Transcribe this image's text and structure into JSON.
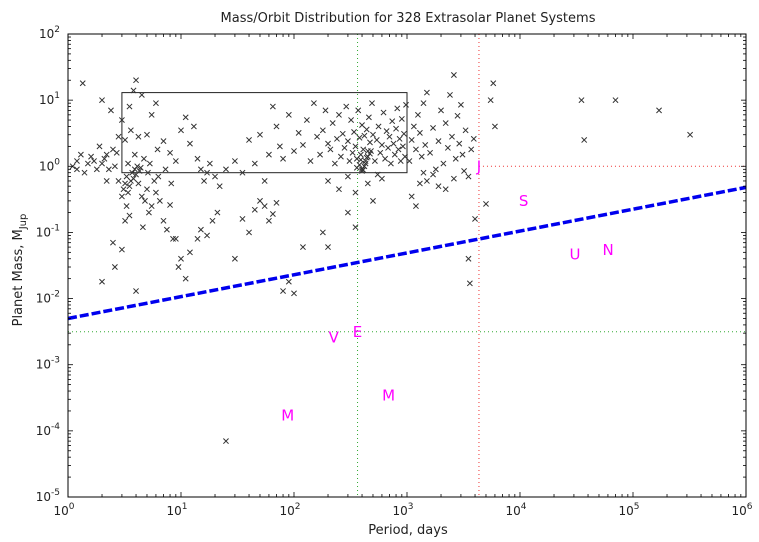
{
  "chart_data": {
    "type": "scatter",
    "title": "Mass/Orbit Distribution for 328 Extrasolar Planet Systems",
    "xlabel": "Period, days",
    "ylabel_main": "Planet Mass, M",
    "ylabel_sub": "Jup",
    "xscale": "log",
    "yscale": "log",
    "xlim": [
      1,
      1000000
    ],
    "ylim": [
      1e-05,
      100
    ],
    "x_ticks": [
      {
        "base": "10",
        "exp": "0",
        "value": 1
      },
      {
        "base": "10",
        "exp": "1",
        "value": 10
      },
      {
        "base": "10",
        "exp": "2",
        "value": 100
      },
      {
        "base": "10",
        "exp": "3",
        "value": 1000
      },
      {
        "base": "10",
        "exp": "4",
        "value": 10000
      },
      {
        "base": "10",
        "exp": "5",
        "value": 100000
      },
      {
        "base": "10",
        "exp": "6",
        "value": 1000000
      }
    ],
    "y_ticks": [
      {
        "base": "10",
        "exp": "-5",
        "value": 1e-05
      },
      {
        "base": "10",
        "exp": "-4",
        "value": 0.0001
      },
      {
        "base": "10",
        "exp": "-3",
        "value": 0.001
      },
      {
        "base": "10",
        "exp": "-2",
        "value": 0.01
      },
      {
        "base": "10",
        "exp": "-1",
        "value": 0.1
      },
      {
        "base": "10",
        "exp": "0",
        "value": 1
      },
      {
        "base": "10",
        "exp": "1",
        "value": 10
      },
      {
        "base": "10",
        "exp": "2",
        "value": 100
      }
    ],
    "colors": {
      "points": "#333333",
      "planets": "#ff00ff",
      "trend": "#0000ee",
      "earth_ref": "#33aa33",
      "jupiter_ref": "#ee3333",
      "box": "#222222"
    },
    "box": {
      "x0": 3,
      "x1": 1000,
      "y0": 0.8,
      "y1": 13
    },
    "reference_lines": {
      "earth_period": 365,
      "earth_mass": 0.00315,
      "jupiter_period": 4333,
      "jupiter_mass": 1.0
    },
    "trend_line": {
      "points": [
        [
          1,
          0.005
        ],
        [
          1000000,
          0.48
        ]
      ]
    },
    "solar_system": [
      {
        "label": "M",
        "x": 88,
        "y": 0.00017
      },
      {
        "label": "V",
        "x": 225,
        "y": 0.0026
      },
      {
        "label": "E",
        "x": 365,
        "y": 0.0031
      },
      {
        "label": "M",
        "x": 687,
        "y": 0.00034
      },
      {
        "label": "J",
        "x": 4333,
        "y": 1.0
      },
      {
        "label": "S",
        "x": 10759,
        "y": 0.3
      },
      {
        "label": "U",
        "x": 30687,
        "y": 0.046
      },
      {
        "label": "N",
        "x": 60190,
        "y": 0.054
      }
    ],
    "exoplanets": [
      [
        1.1,
        1.0
      ],
      [
        1.2,
        1.2
      ],
      [
        1.3,
        1.5
      ],
      [
        1.35,
        18
      ],
      [
        1.4,
        0.8
      ],
      [
        1.5,
        1.1
      ],
      [
        1.6,
        1.4
      ],
      [
        1.7,
        1.2
      ],
      [
        1.8,
        0.9
      ],
      [
        1.9,
        2.0
      ],
      [
        2.0,
        1.1
      ],
      [
        2.1,
        1.3
      ],
      [
        2.2,
        1.5
      ],
      [
        2.0,
        10
      ],
      [
        2.3,
        0.9
      ],
      [
        2.5,
        1.8
      ],
      [
        2.6,
        1.0
      ],
      [
        2.7,
        1.6
      ],
      [
        2.8,
        2.8
      ],
      [
        2.4,
        7
      ],
      [
        2.5,
        0.07
      ],
      [
        2.6,
        0.03
      ],
      [
        2.8,
        0.6
      ],
      [
        3.0,
        0.35
      ],
      [
        3.1,
        0.45
      ],
      [
        3.2,
        0.55
      ],
      [
        3.3,
        0.7
      ],
      [
        3.4,
        0.4
      ],
      [
        3.5,
        0.5
      ],
      [
        3.6,
        0.6
      ],
      [
        3.7,
        0.8
      ],
      [
        3.8,
        0.65
      ],
      [
        3.9,
        0.9
      ],
      [
        4.0,
        0.75
      ],
      [
        4.1,
        1.0
      ],
      [
        4.2,
        0.55
      ],
      [
        4.3,
        0.85
      ],
      [
        3.3,
        0.25
      ],
      [
        3.5,
        0.18
      ],
      [
        3.2,
        0.15
      ],
      [
        4.5,
        0.35
      ],
      [
        4.6,
        0.12
      ],
      [
        4.8,
        0.3
      ],
      [
        5.0,
        0.45
      ],
      [
        5.2,
        0.2
      ],
      [
        5.5,
        0.25
      ],
      [
        5.8,
        0.6
      ],
      [
        6.0,
        0.4
      ],
      [
        6.5,
        0.3
      ],
      [
        7.0,
        0.15
      ],
      [
        3.0,
        5
      ],
      [
        3.5,
        8
      ],
      [
        4.0,
        20
      ],
      [
        4.5,
        12
      ],
      [
        5.0,
        3
      ],
      [
        5.5,
        6
      ],
      [
        6.0,
        9
      ],
      [
        3.8,
        14
      ],
      [
        3.2,
        2.5
      ],
      [
        3.6,
        3.5
      ],
      [
        4.2,
        2.8
      ],
      [
        3.9,
        1.5
      ],
      [
        4.7,
        1.3
      ],
      [
        5.3,
        1.1
      ],
      [
        6.2,
        1.8
      ],
      [
        7.0,
        2.4
      ],
      [
        8.0,
        1.6
      ],
      [
        9.0,
        1.2
      ],
      [
        10,
        3.5
      ],
      [
        11,
        5.5
      ],
      [
        12,
        2.2
      ],
      [
        13,
        4.0
      ],
      [
        14,
        1.3
      ],
      [
        15,
        0.9
      ],
      [
        16,
        0.6
      ],
      [
        17,
        0.8
      ],
      [
        18,
        1.1
      ],
      [
        20,
        0.7
      ],
      [
        22,
        0.5
      ],
      [
        25,
        0.9
      ],
      [
        9.0,
        0.08
      ],
      [
        9.5,
        0.03
      ],
      [
        10,
        0.04
      ],
      [
        11,
        0.02
      ],
      [
        12,
        0.05
      ],
      [
        14,
        0.08
      ],
      [
        15,
        0.11
      ],
      [
        17,
        0.09
      ],
      [
        19,
        0.15
      ],
      [
        21,
        0.2
      ],
      [
        7.5,
        0.11
      ],
      [
        8.0,
        0.26
      ],
      [
        8.5,
        0.08
      ],
      [
        4.0,
        0.013
      ],
      [
        2.0,
        0.018
      ],
      [
        3.0,
        0.055
      ],
      [
        25,
        7e-05
      ],
      [
        30,
        0.04
      ],
      [
        35,
        0.16
      ],
      [
        40,
        0.1
      ],
      [
        45,
        0.22
      ],
      [
        50,
        0.3
      ],
      [
        55,
        0.25
      ],
      [
        60,
        0.15
      ],
      [
        65,
        0.19
      ],
      [
        70,
        0.28
      ],
      [
        80,
        0.013
      ],
      [
        90,
        0.018
      ],
      [
        100,
        0.012
      ],
      [
        120,
        0.06
      ],
      [
        30,
        1.2
      ],
      [
        35,
        0.8
      ],
      [
        40,
        2.5
      ],
      [
        45,
        1.1
      ],
      [
        50,
        3.0
      ],
      [
        55,
        0.6
      ],
      [
        60,
        1.5
      ],
      [
        65,
        8
      ],
      [
        70,
        4
      ],
      [
        75,
        2
      ],
      [
        80,
        1.3
      ],
      [
        90,
        6
      ],
      [
        100,
        1.7
      ],
      [
        110,
        3.2
      ],
      [
        120,
        2.1
      ],
      [
        130,
        5
      ],
      [
        140,
        1.2
      ],
      [
        150,
        9
      ],
      [
        160,
        2.8
      ],
      [
        170,
        1.5
      ],
      [
        180,
        3.5
      ],
      [
        190,
        7
      ],
      [
        200,
        2.2
      ],
      [
        210,
        1.8
      ],
      [
        220,
        4.5
      ],
      [
        230,
        1.1
      ],
      [
        240,
        2.6
      ],
      [
        250,
        6
      ],
      [
        260,
        1.4
      ],
      [
        270,
        3.1
      ],
      [
        280,
        1.9
      ],
      [
        290,
        8
      ],
      [
        300,
        2.4
      ],
      [
        310,
        1.2
      ],
      [
        320,
        5
      ],
      [
        330,
        1.6
      ],
      [
        340,
        3.3
      ],
      [
        350,
        2.0
      ],
      [
        360,
        1.3
      ],
      [
        370,
        7
      ],
      [
        380,
        2.7
      ],
      [
        390,
        1.5
      ],
      [
        400,
        4.2
      ],
      [
        410,
        1.8
      ],
      [
        420,
        2.9
      ],
      [
        430,
        1.1
      ],
      [
        440,
        3.6
      ],
      [
        450,
        1.4
      ],
      [
        460,
        5.5
      ],
      [
        470,
        2.3
      ],
      [
        480,
        1.7
      ],
      [
        490,
        9
      ],
      [
        500,
        3.0
      ],
      [
        520,
        1.2
      ],
      [
        540,
        2.5
      ],
      [
        560,
        4
      ],
      [
        580,
        1.6
      ],
      [
        600,
        2.1
      ],
      [
        620,
        6.5
      ],
      [
        640,
        1.3
      ],
      [
        660,
        3.4
      ],
      [
        680,
        1.9
      ],
      [
        700,
        2.8
      ],
      [
        720,
        1.1
      ],
      [
        740,
        4.8
      ],
      [
        760,
        2.2
      ],
      [
        780,
        1.5
      ],
      [
        800,
        3.7
      ],
      [
        820,
        7.5
      ],
      [
        840,
        1.8
      ],
      [
        860,
        2.6
      ],
      [
        880,
        1.2
      ],
      [
        900,
        5.2
      ],
      [
        920,
        2.0
      ],
      [
        940,
        3.1
      ],
      [
        960,
        1.4
      ],
      [
        980,
        8.5
      ],
      [
        200,
        0.6
      ],
      [
        250,
        0.45
      ],
      [
        300,
        0.7
      ],
      [
        350,
        0.4
      ],
      [
        400,
        0.85
      ],
      [
        450,
        0.55
      ],
      [
        500,
        0.3
      ],
      [
        550,
        0.75
      ],
      [
        600,
        0.65
      ],
      [
        180,
        0.1
      ],
      [
        300,
        0.2
      ],
      [
        350,
        0.12
      ],
      [
        200,
        0.06
      ],
      [
        400,
        0.9
      ],
      [
        420,
        1.0
      ],
      [
        380,
        1.05
      ],
      [
        430,
        1.2
      ],
      [
        360,
        0.95
      ],
      [
        450,
        1.7
      ],
      [
        470,
        1.55
      ],
      [
        440,
        1.35
      ],
      [
        410,
        0.88
      ],
      [
        390,
        1.25
      ],
      [
        1050,
        1.2
      ],
      [
        1100,
        2.5
      ],
      [
        1150,
        4
      ],
      [
        1200,
        1.8
      ],
      [
        1250,
        6
      ],
      [
        1300,
        3.2
      ],
      [
        1350,
        1.4
      ],
      [
        1400,
        9
      ],
      [
        1450,
        2.1
      ],
      [
        1500,
        13
      ],
      [
        1600,
        1.6
      ],
      [
        1700,
        3.8
      ],
      [
        1800,
        0.9
      ],
      [
        1900,
        2.4
      ],
      [
        2000,
        7
      ],
      [
        2100,
        1.1
      ],
      [
        2200,
        4.5
      ],
      [
        2300,
        1.9
      ],
      [
        2400,
        12
      ],
      [
        2500,
        2.8
      ],
      [
        2600,
        24
      ],
      [
        2700,
        1.3
      ],
      [
        2800,
        5.8
      ],
      [
        2900,
        2.2
      ],
      [
        3000,
        8.5
      ],
      [
        3100,
        1.5
      ],
      [
        3300,
        3.5
      ],
      [
        3500,
        0.7
      ],
      [
        3700,
        1.8
      ],
      [
        3900,
        2.6
      ],
      [
        1100,
        0.35
      ],
      [
        1200,
        0.25
      ],
      [
        1300,
        0.55
      ],
      [
        1400,
        0.8
      ],
      [
        1500,
        0.6
      ],
      [
        1700,
        0.75
      ],
      [
        1900,
        0.5
      ],
      [
        2200,
        0.45
      ],
      [
        2600,
        0.65
      ],
      [
        3200,
        0.85
      ],
      [
        3500,
        0.04
      ],
      [
        3600,
        0.017
      ],
      [
        4000,
        0.16
      ],
      [
        5000,
        0.27
      ],
      [
        5500,
        10
      ],
      [
        5800,
        18
      ],
      [
        6000,
        4
      ],
      [
        35000,
        10
      ],
      [
        37000,
        2.5
      ],
      [
        70000,
        10
      ],
      [
        170000,
        7
      ],
      [
        320000,
        3
      ],
      [
        1.2,
        0.9
      ],
      [
        2.2,
        0.6
      ],
      [
        3.4,
        1.1
      ],
      [
        4.4,
        0.95
      ],
      [
        5.1,
        0.8
      ],
      [
        6.3,
        0.7
      ],
      [
        7.3,
        0.9
      ],
      [
        8.2,
        0.55
      ]
    ]
  }
}
